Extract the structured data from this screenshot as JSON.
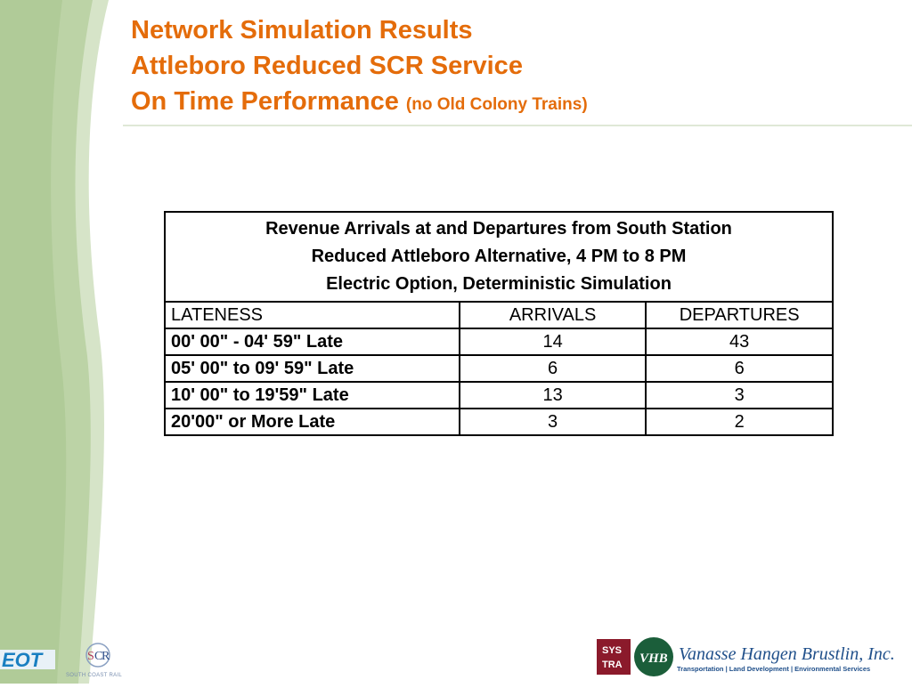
{
  "title": {
    "line1": "Network Simulation Results",
    "line2": "Attleboro Reduced SCR Service",
    "line3": "On Time Performance",
    "line3_suffix": "(no Old Colony Trains)"
  },
  "table": {
    "caption": [
      "Revenue Arrivals at and Departures from South Station",
      "Reduced Attleboro Alternative, 4 PM to 8 PM",
      "Electric Option, Deterministic Simulation"
    ],
    "headers": [
      "LATENESS",
      "ARRIVALS",
      "DEPARTURES"
    ],
    "rows": [
      {
        "lateness": "00' 00\" - 04' 59\" Late",
        "arrivals": "14",
        "departures": "43"
      },
      {
        "lateness": "05' 00\" to 09' 59\" Late",
        "arrivals": "6",
        "departures": "6"
      },
      {
        "lateness": "10' 00\" to 19'59\" Late",
        "arrivals": "13",
        "departures": "3"
      },
      {
        "lateness": "20'00\" or More Late",
        "arrivals": "3",
        "departures": "2"
      }
    ]
  },
  "footer": {
    "eot_logo": "EOT",
    "scr_tagline": "SOUTH COAST RAIL",
    "systra_logo": "SYSTRA",
    "vhb_logo": "VHB",
    "vhb_name": "Vanasse Hangen Brustlin, Inc.",
    "vhb_tagline": "Transportation | Land Development | Environmental Services"
  },
  "colors": {
    "title": "#e46c0a",
    "left_band": "#c7d9b7",
    "vhb_blue": "#1f4f8a",
    "systra_red": "#8b1a2b"
  }
}
